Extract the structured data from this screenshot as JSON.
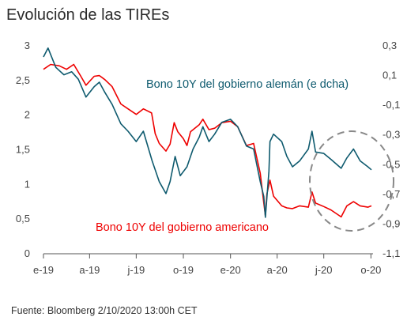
{
  "title": "Evolución de las TIREs",
  "source": "Fuente: Bloomberg 2/10/2020 13:00h CET",
  "colors": {
    "us": "#ee0000",
    "de": "#0e5a6e",
    "axis": "#555555",
    "circle": "#888888"
  },
  "chart_data": {
    "type": "line",
    "title": "Evolución de las TIREs",
    "x_tick_labels": [
      "e-19",
      "a-19",
      "j-19",
      "o-19",
      "e-20",
      "a-20",
      "j-20",
      "o-20"
    ],
    "xlim": [
      "2019-01-01",
      "2020-10-02"
    ],
    "y_left": {
      "ylim": [
        0,
        3
      ],
      "ticks": [
        "0",
        "0,5",
        "1",
        "1,5",
        "2",
        "2,5",
        "3"
      ]
    },
    "y_right": {
      "ylim": [
        -1.1,
        0.3
      ],
      "ticks": [
        "0,3",
        "0,1",
        "-0,1",
        "-0,3",
        "-0,5",
        "-0,7",
        "-0,9",
        "-1,1"
      ]
    },
    "grid": false,
    "series": [
      {
        "name": "Bono 10Y del gobierno americano",
        "axis": "left",
        "x": [
          "2019-01-01",
          "2019-01-15",
          "2019-02-01",
          "2019-02-15",
          "2019-03-01",
          "2019-03-15",
          "2019-03-25",
          "2019-04-10",
          "2019-04-20",
          "2019-05-01",
          "2019-05-15",
          "2019-06-01",
          "2019-06-15",
          "2019-07-01",
          "2019-07-15",
          "2019-07-31",
          "2019-08-07",
          "2019-08-15",
          "2019-08-28",
          "2019-09-05",
          "2019-09-13",
          "2019-09-20",
          "2019-10-01",
          "2019-10-08",
          "2019-10-15",
          "2019-11-01",
          "2019-11-08",
          "2019-11-20",
          "2019-12-01",
          "2019-12-15",
          "2020-01-01",
          "2020-01-15",
          "2020-02-01",
          "2020-02-15",
          "2020-02-28",
          "2020-03-06",
          "2020-03-09",
          "2020-03-12",
          "2020-03-18",
          "2020-03-25",
          "2020-04-10",
          "2020-04-20",
          "2020-05-01",
          "2020-05-15",
          "2020-06-01",
          "2020-06-08",
          "2020-06-15",
          "2020-07-01",
          "2020-07-15",
          "2020-08-04",
          "2020-08-15",
          "2020-08-28",
          "2020-09-10",
          "2020-09-25",
          "2020-10-02"
        ],
        "y": [
          2.65,
          2.72,
          2.7,
          2.65,
          2.72,
          2.55,
          2.42,
          2.55,
          2.56,
          2.5,
          2.4,
          2.15,
          2.08,
          2.0,
          2.08,
          2.02,
          1.72,
          1.58,
          1.47,
          1.57,
          1.88,
          1.75,
          1.65,
          1.55,
          1.75,
          1.85,
          1.93,
          1.78,
          1.8,
          1.88,
          1.9,
          1.82,
          1.55,
          1.58,
          1.15,
          0.72,
          0.54,
          0.85,
          1.05,
          0.82,
          0.68,
          0.65,
          0.64,
          0.68,
          0.66,
          0.88,
          0.72,
          0.67,
          0.62,
          0.52,
          0.68,
          0.74,
          0.68,
          0.66,
          0.68
        ]
      },
      {
        "name": "Bono 10Y del gobierno alemán (e dcha)",
        "axis": "right",
        "x": [
          "2019-01-01",
          "2019-01-10",
          "2019-01-25",
          "2019-02-10",
          "2019-02-25",
          "2019-03-10",
          "2019-03-25",
          "2019-04-10",
          "2019-04-20",
          "2019-05-01",
          "2019-05-15",
          "2019-06-01",
          "2019-06-15",
          "2019-07-01",
          "2019-07-15",
          "2019-08-01",
          "2019-08-15",
          "2019-08-28",
          "2019-09-05",
          "2019-09-15",
          "2019-09-25",
          "2019-10-08",
          "2019-10-20",
          "2019-11-01",
          "2019-11-08",
          "2019-11-20",
          "2019-12-01",
          "2019-12-15",
          "2020-01-01",
          "2020-01-15",
          "2020-02-01",
          "2020-02-15",
          "2020-02-28",
          "2020-03-06",
          "2020-03-09",
          "2020-03-16",
          "2020-03-18",
          "2020-03-25",
          "2020-04-10",
          "2020-04-20",
          "2020-05-01",
          "2020-05-15",
          "2020-06-01",
          "2020-06-08",
          "2020-06-15",
          "2020-07-01",
          "2020-07-15",
          "2020-08-04",
          "2020-08-15",
          "2020-08-28",
          "2020-09-10",
          "2020-09-25",
          "2020-10-02"
        ],
        "y": [
          0.22,
          0.28,
          0.15,
          0.1,
          0.12,
          0.07,
          -0.05,
          0.02,
          0.05,
          -0.02,
          -0.1,
          -0.23,
          -0.28,
          -0.35,
          -0.28,
          -0.48,
          -0.62,
          -0.7,
          -0.62,
          -0.45,
          -0.58,
          -0.52,
          -0.4,
          -0.32,
          -0.25,
          -0.35,
          -0.3,
          -0.22,
          -0.2,
          -0.25,
          -0.38,
          -0.4,
          -0.62,
          -0.72,
          -0.86,
          -0.55,
          -0.35,
          -0.3,
          -0.35,
          -0.45,
          -0.52,
          -0.48,
          -0.4,
          -0.28,
          -0.42,
          -0.43,
          -0.47,
          -0.53,
          -0.46,
          -0.4,
          -0.48,
          -0.52,
          -0.54
        ]
      }
    ],
    "annotations": [
      {
        "text": "Bono 10Y del gobierno alemán (e dcha)",
        "series": "Bono 10Y del gobierno alemán (e dcha)"
      },
      {
        "text": "Bono 10Y del gobierno americano",
        "series": "Bono 10Y del gobierno americano"
      }
    ]
  }
}
